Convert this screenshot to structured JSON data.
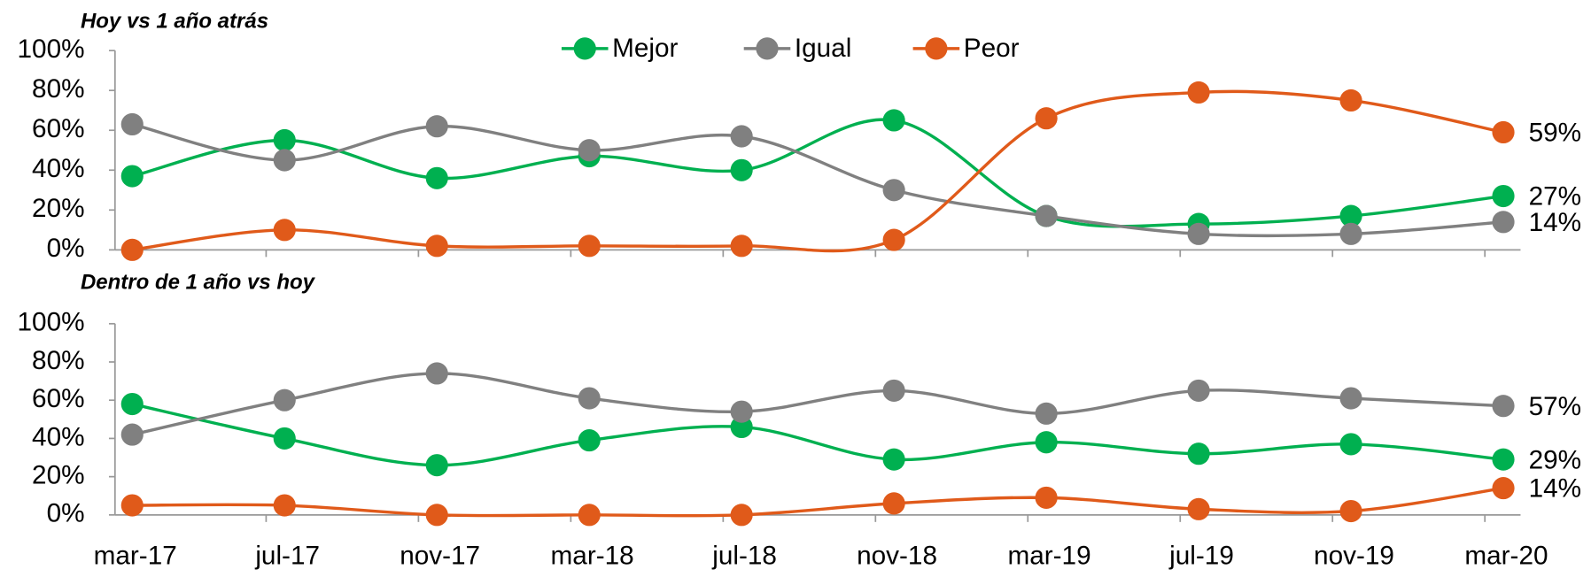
{
  "chart_data": [
    {
      "type": "line",
      "title": "Hoy vs 1 año atrás",
      "ylim": [
        0,
        100
      ],
      "yticks": [
        {
          "value": 0,
          "label": "0%"
        },
        {
          "value": 20,
          "label": "20%"
        },
        {
          "value": 40,
          "label": "40%"
        },
        {
          "value": 60,
          "label": "60%"
        },
        {
          "value": 80,
          "label": "80%"
        },
        {
          "value": 100,
          "label": "100%"
        }
      ],
      "legend": "top",
      "series": [
        {
          "name": "Mejor",
          "color": "#00b050",
          "values": [
            37,
            55,
            36,
            47,
            40,
            65,
            17,
            13,
            17,
            27
          ],
          "value_labels": [
            null,
            null,
            null,
            null,
            null,
            null,
            null,
            null,
            null,
            "27%"
          ]
        },
        {
          "name": "Igual",
          "color": "#808080",
          "values": [
            63,
            45,
            62,
            50,
            57,
            30,
            17,
            8,
            8,
            14
          ],
          "value_labels": [
            null,
            null,
            null,
            null,
            null,
            null,
            null,
            null,
            null,
            "14%"
          ]
        },
        {
          "name": "Peor",
          "color": "#e05a1a",
          "values": [
            0,
            10,
            2,
            2,
            2,
            5,
            66,
            79,
            75,
            59
          ],
          "value_labels": [
            null,
            null,
            null,
            null,
            null,
            null,
            null,
            null,
            null,
            "59%"
          ]
        }
      ]
    },
    {
      "type": "line",
      "title": "Dentro de 1 año vs hoy",
      "categories": [
        "mar-17",
        "jul-17",
        "nov-17",
        "mar-18",
        "jul-18",
        "nov-18",
        "mar-19",
        "jul-19",
        "nov-19",
        "mar-20"
      ],
      "ylim": [
        0,
        100
      ],
      "yticks": [
        {
          "value": 0,
          "label": "0%"
        },
        {
          "value": 20,
          "label": "20%"
        },
        {
          "value": 40,
          "label": "40%"
        },
        {
          "value": 60,
          "label": "60%"
        },
        {
          "value": 80,
          "label": "80%"
        },
        {
          "value": 100,
          "label": "100%"
        }
      ],
      "series": [
        {
          "name": "Mejor",
          "color": "#00b050",
          "values": [
            58,
            40,
            26,
            39,
            46,
            29,
            38,
            32,
            37,
            29
          ],
          "value_labels": [
            null,
            null,
            null,
            null,
            null,
            null,
            null,
            null,
            null,
            "29%"
          ]
        },
        {
          "name": "Igual",
          "color": "#808080",
          "values": [
            42,
            60,
            74,
            61,
            54,
            65,
            53,
            65,
            61,
            57
          ],
          "value_labels": [
            null,
            null,
            null,
            null,
            null,
            null,
            null,
            null,
            null,
            "57%"
          ]
        },
        {
          "name": "Peor",
          "color": "#e05a1a",
          "values": [
            5,
            5,
            0,
            0,
            0,
            6,
            9,
            3,
            2,
            14
          ],
          "value_labels": [
            null,
            null,
            null,
            null,
            null,
            null,
            null,
            null,
            null,
            "14%"
          ]
        }
      ]
    }
  ]
}
